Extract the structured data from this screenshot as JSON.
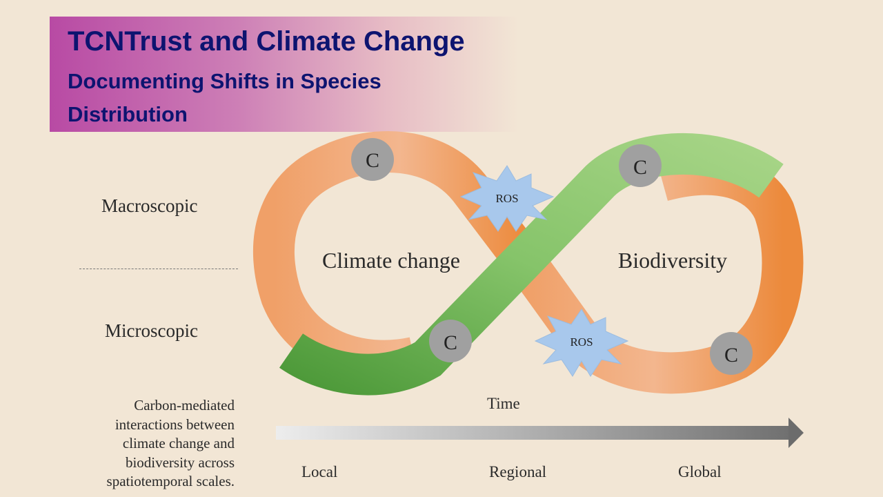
{
  "header": {
    "title": "TCNTrust and Climate Change",
    "subtitle": "Documenting Shifts in Species Distribution"
  },
  "scale_levels": {
    "top": "Macroscopic",
    "bottom": "Microscopic"
  },
  "diagram": {
    "left_loop_label": "Climate change",
    "right_loop_label": "Biodiversity",
    "carbon_node_label": "C",
    "ros_label": "ROS",
    "colors": {
      "orange_band": "#f0a068",
      "green_band": "#8cc86c",
      "carbon_node": "#a0a0a0",
      "ros_burst": "#a8c8ec"
    }
  },
  "caption": "Carbon-mediated interactions between climate change and biodiversity across spatiotemporal scales.",
  "time_axis": {
    "title": "Time",
    "ticks": [
      "Local",
      "Regional",
      "Global"
    ]
  }
}
